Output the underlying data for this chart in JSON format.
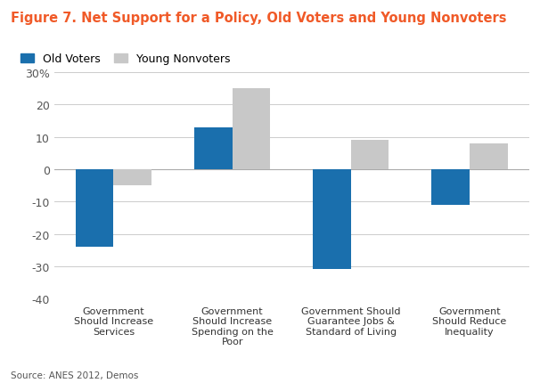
{
  "title": "Figure 7. Net Support for a Policy, Old Voters and Young Nonvoters",
  "title_color": "#f05a28",
  "categories": [
    "Government\nShould Increase\nServices",
    "Government\nShould Increase\nSpending on the\nPoor",
    "Government Should\nGuarantee Jobs &\nStandard of Living",
    "Government\nShould Reduce\nInequality"
  ],
  "old_voters": [
    -24,
    13,
    -31,
    -11
  ],
  "young_nonvoters": [
    -5,
    25,
    9,
    8
  ],
  "old_voters_color": "#1a6fad",
  "young_nonvoters_color": "#c8c8c8",
  "ylim": [
    -40,
    30
  ],
  "yticks": [
    -40,
    -30,
    -20,
    -10,
    0,
    10,
    20,
    30
  ],
  "ytick_labels": [
    "-40",
    "-30",
    "-20",
    "-10",
    "0",
    "10",
    "20",
    "30%"
  ],
  "source": "Source: ANES 2012, Demos",
  "bar_width": 0.32,
  "background_color": "#ffffff",
  "grid_color": "#cccccc",
  "legend_labels": [
    "Old Voters",
    "Young Nonvoters"
  ]
}
